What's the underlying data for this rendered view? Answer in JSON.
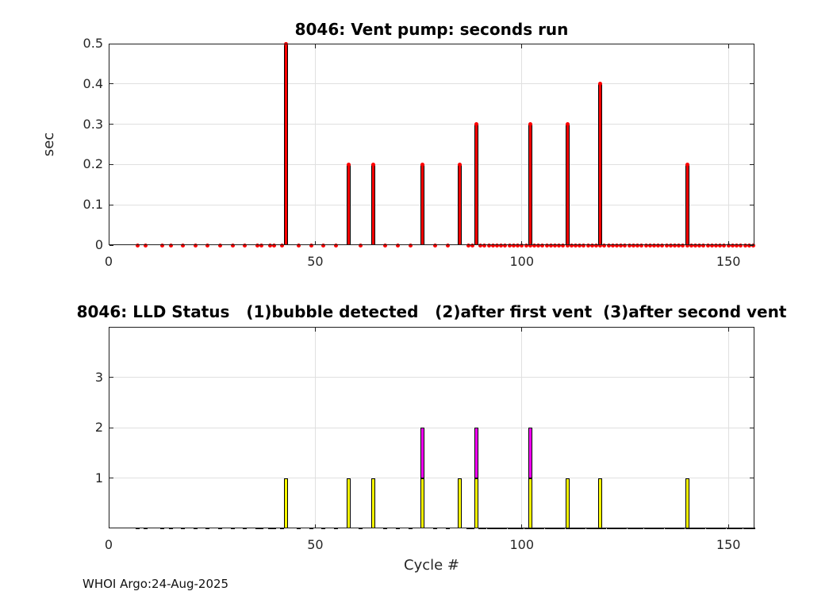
{
  "page": {
    "background": "#ffffff",
    "footer": "WHOI Argo:24-Aug-2025"
  },
  "chart_data": [
    {
      "type": "bar",
      "title": "8046: Vent pump: seconds run",
      "ylabel": "sec",
      "xlabel": "",
      "xlim": [
        0,
        156.3
      ],
      "ylim": [
        0,
        0.5
      ],
      "grid": true,
      "legend": "none",
      "bar_color": "#ff0000",
      "bar_edge_color": "#000000",
      "xticks": {
        "values": [
          0,
          50,
          100,
          150
        ],
        "labels": [
          "0",
          "50",
          "100",
          "150"
        ]
      },
      "yticks": {
        "values": [
          0,
          0.1,
          0.2,
          0.3,
          0.4,
          0.5
        ],
        "labels": [
          "0",
          "0.1",
          "0.2",
          "0.3",
          "0.4",
          "0.5"
        ]
      },
      "bars": {
        "cycles": [
          43,
          58,
          64,
          76,
          85,
          89,
          102,
          111,
          119,
          140
        ],
        "values": [
          0.5,
          0.2,
          0.2,
          0.2,
          0.2,
          0.3,
          0.3,
          0.3,
          0.4,
          0.2
        ]
      },
      "zero_markers": {
        "style": "dot",
        "color": "#ff0000",
        "cycles": [
          7,
          9,
          13,
          15,
          18,
          21,
          24,
          27,
          30,
          33,
          36,
          37,
          39,
          40,
          42,
          46,
          49,
          52,
          55,
          61,
          67,
          70,
          73,
          79,
          82,
          87,
          88,
          90,
          91,
          92,
          93,
          94,
          95,
          96,
          97,
          98,
          99,
          100,
          101,
          102,
          103,
          104,
          105,
          106,
          107,
          108,
          109,
          110,
          111,
          112,
          113,
          114,
          115,
          116,
          117,
          118,
          119,
          120,
          121,
          122,
          123,
          124,
          125,
          126,
          127,
          128,
          129,
          130,
          131,
          132,
          133,
          134,
          135,
          136,
          137,
          138,
          139,
          140,
          141,
          142,
          143,
          144,
          145,
          146,
          147,
          148,
          149,
          150,
          151,
          152,
          153,
          154,
          155,
          156
        ]
      }
    },
    {
      "type": "bar",
      "title": "8046: LLD Status   (1)bubble detected   (2)after first vent  (3)after second vent",
      "ylabel": "",
      "xlabel": "Cycle #",
      "xlim": [
        0,
        156.3
      ],
      "ylim": [
        0,
        4
      ],
      "grid": true,
      "legend": "none",
      "level_colors": [
        "#ffff00",
        "#ff00ff"
      ],
      "bar_edge_color": "#000000",
      "xticks": {
        "values": [
          0,
          50,
          100,
          150
        ],
        "labels": [
          "0",
          "50",
          "100",
          "150"
        ]
      },
      "yticks": {
        "values": [
          1,
          2,
          3
        ],
        "labels": [
          "1",
          "2",
          "3"
        ]
      },
      "bars": {
        "cycles": [
          43,
          58,
          64,
          76,
          85,
          89,
          102,
          111,
          119,
          140
        ],
        "values": [
          1,
          1,
          1,
          2,
          1,
          2,
          2,
          1,
          1,
          1
        ]
      },
      "zero_markers": {
        "style": "dash",
        "color": "#000000",
        "cycles": [
          7,
          9,
          13,
          15,
          18,
          21,
          24,
          27,
          30,
          33,
          36,
          37,
          39,
          40,
          42,
          46,
          49,
          52,
          55,
          61,
          67,
          70,
          73,
          79,
          82,
          87,
          88,
          90,
          91,
          92,
          93,
          94,
          95,
          96,
          97,
          98,
          99,
          100,
          101,
          102,
          103,
          104,
          105,
          106,
          107,
          108,
          109,
          110,
          111,
          112,
          113,
          114,
          115,
          116,
          117,
          118,
          119,
          120,
          121,
          122,
          123,
          124,
          125,
          126,
          127,
          128,
          129,
          130,
          131,
          132,
          133,
          134,
          135,
          136,
          137,
          138,
          139,
          140,
          141,
          142,
          143,
          144,
          145,
          146,
          147,
          148,
          149,
          150,
          151,
          152,
          153,
          154,
          155,
          156
        ]
      }
    }
  ]
}
